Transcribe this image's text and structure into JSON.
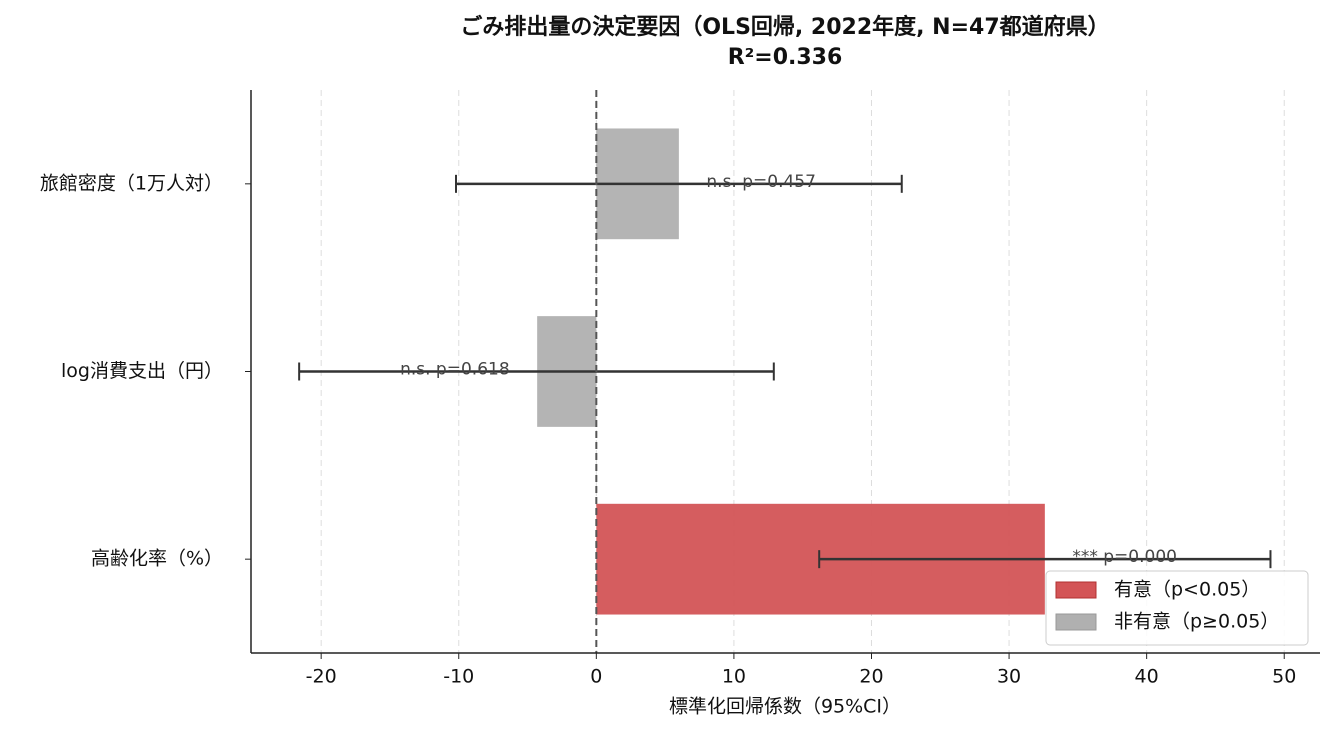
{
  "chart_data": {
    "type": "hbar_ci",
    "title": [
      "ごみ排出量の決定要因（OLS回帰, 2022年度, N=47都道府県）",
      "R²=0.336"
    ],
    "x_label": "標準化回帰係数（95%CI）",
    "categories": [
      "旅館密度（1万人対）",
      "log消費支出（円）",
      "高齢化率（%）"
    ],
    "values": [
      6.0,
      -4.3,
      32.6
    ],
    "ci_low": [
      -10.2,
      -21.6,
      16.2
    ],
    "ci_high": [
      22.2,
      12.9,
      49.0
    ],
    "colors": [
      "#b0b0b0",
      "#b0b0b0",
      "#d35456"
    ],
    "labels": [
      "n.s.  p=0.457",
      "n.s.  p=0.618",
      "***  p=0.000"
    ],
    "xlim": [
      -25.1,
      52.6
    ],
    "xticks": [
      -20,
      -10,
      0,
      10,
      20,
      30,
      40,
      50
    ],
    "grid": true,
    "zero_line": true,
    "legend": [
      {
        "name": "有意（p<0.05）",
        "color": "#d35456"
      },
      {
        "name": "非有意（p≥0.05）",
        "color": "#b0b0b0"
      }
    ],
    "legend_position": "lower right"
  }
}
